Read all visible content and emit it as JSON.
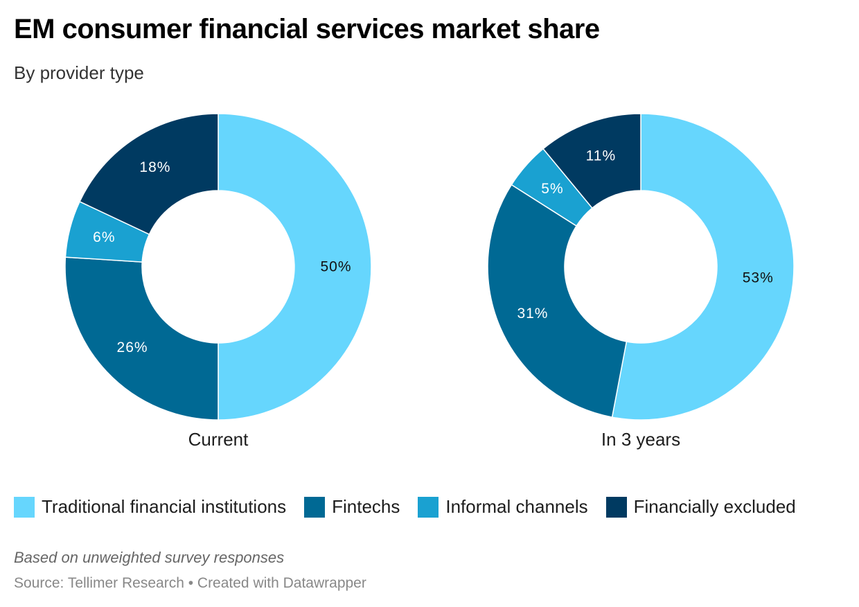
{
  "title": "EM consumer financial services market share",
  "subtitle": "By provider type",
  "notes": "Based on unweighted survey responses",
  "source": "Source: Tellimer Research • Created with Datawrapper",
  "chart_data": [
    {
      "type": "pie",
      "donut": true,
      "caption": "Current",
      "categories": [
        "Traditional financial institutions",
        "Fintechs",
        "Informal channels",
        "Financially excluded"
      ],
      "values": [
        50,
        26,
        6,
        18
      ],
      "labels": [
        "50%",
        "26%",
        "6%",
        "18%"
      ],
      "unit": "%"
    },
    {
      "type": "pie",
      "donut": true,
      "caption": "In 3 years",
      "categories": [
        "Traditional financial institutions",
        "Fintechs",
        "Informal channels",
        "Financially excluded"
      ],
      "values": [
        53,
        31,
        5,
        11
      ],
      "labels": [
        "53%",
        "31%",
        "5%",
        "11%"
      ],
      "unit": "%"
    }
  ],
  "legend": [
    {
      "label": "Traditional financial institutions",
      "color": "#66d6fd"
    },
    {
      "label": "Fintechs",
      "color": "#006994"
    },
    {
      "label": "Informal channels",
      "color": "#1aa1d1"
    },
    {
      "label": "Financially excluded",
      "color": "#003a61"
    }
  ],
  "label_colors": [
    "#111111",
    "#ffffff",
    "#ffffff",
    "#ffffff"
  ]
}
